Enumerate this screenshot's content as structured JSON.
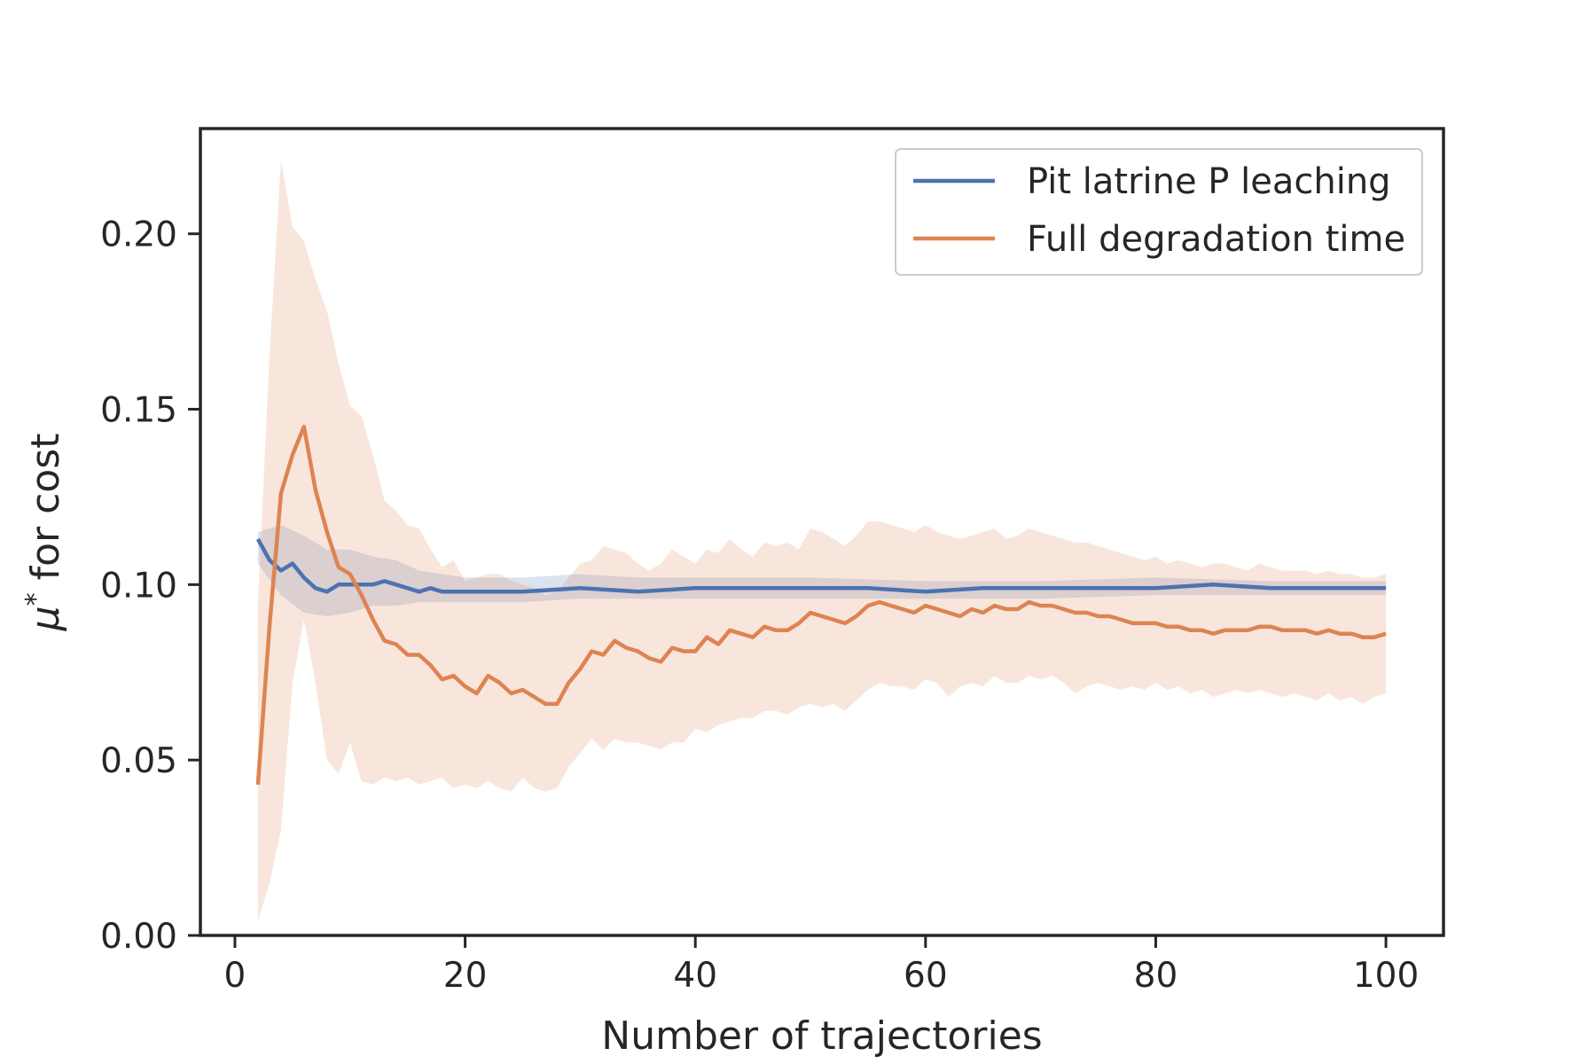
{
  "chart_data": {
    "type": "line",
    "title": "",
    "xlabel": "Number of trajectories",
    "ylabel_prefix": "μ",
    "ylabel_sup": "*",
    "ylabel_suffix": " for cost",
    "xlim": [
      -3,
      105
    ],
    "ylim": [
      0,
      0.23
    ],
    "x_ticks": [
      0,
      20,
      40,
      60,
      80,
      100
    ],
    "y_ticks": [
      0.0,
      0.05,
      0.1,
      0.15,
      0.2
    ],
    "x_tick_labels": [
      "0",
      "20",
      "40",
      "60",
      "80",
      "100"
    ],
    "y_tick_labels": [
      "0.00",
      "0.05",
      "0.10",
      "0.15",
      "0.20"
    ],
    "grid": false,
    "legend_position": "top-right",
    "series": [
      {
        "name": "Pit latrine P leaching",
        "color": "#4c72b0",
        "band_opacity": 0.2,
        "points": [
          [
            2,
            0.113
          ],
          [
            3,
            0.107
          ],
          [
            4,
            0.104
          ],
          [
            5,
            0.106
          ],
          [
            6,
            0.102
          ],
          [
            7,
            0.099
          ],
          [
            8,
            0.098
          ],
          [
            9,
            0.1
          ],
          [
            10,
            0.1
          ],
          [
            11,
            0.1
          ],
          [
            12,
            0.1
          ],
          [
            13,
            0.101
          ],
          [
            14,
            0.1
          ],
          [
            15,
            0.099
          ],
          [
            16,
            0.098
          ],
          [
            17,
            0.099
          ],
          [
            18,
            0.098
          ],
          [
            19,
            0.098
          ],
          [
            20,
            0.098
          ],
          [
            25,
            0.098
          ],
          [
            30,
            0.099
          ],
          [
            35,
            0.098
          ],
          [
            40,
            0.099
          ],
          [
            45,
            0.099
          ],
          [
            50,
            0.099
          ],
          [
            55,
            0.099
          ],
          [
            60,
            0.098
          ],
          [
            65,
            0.099
          ],
          [
            70,
            0.099
          ],
          [
            75,
            0.099
          ],
          [
            80,
            0.099
          ],
          [
            85,
            0.1
          ],
          [
            90,
            0.099
          ],
          [
            95,
            0.099
          ],
          [
            100,
            0.099
          ]
        ],
        "band": [
          [
            2,
            0.106,
            0.115
          ],
          [
            4,
            0.097,
            0.117
          ],
          [
            6,
            0.092,
            0.114
          ],
          [
            8,
            0.091,
            0.11
          ],
          [
            10,
            0.092,
            0.11
          ],
          [
            12,
            0.094,
            0.108
          ],
          [
            14,
            0.094,
            0.107
          ],
          [
            16,
            0.095,
            0.104
          ],
          [
            18,
            0.095,
            0.103
          ],
          [
            20,
            0.095,
            0.102
          ],
          [
            25,
            0.095,
            0.102
          ],
          [
            30,
            0.096,
            0.103
          ],
          [
            35,
            0.096,
            0.102
          ],
          [
            40,
            0.096,
            0.102
          ],
          [
            50,
            0.096,
            0.102
          ],
          [
            60,
            0.096,
            0.101
          ],
          [
            70,
            0.096,
            0.101
          ],
          [
            80,
            0.097,
            0.102
          ],
          [
            90,
            0.097,
            0.101
          ],
          [
            100,
            0.097,
            0.101
          ]
        ]
      },
      {
        "name": "Full degradation time",
        "color": "#dd8452",
        "band_opacity": 0.2,
        "points": [
          [
            2,
            0.043
          ],
          [
            3,
            0.088
          ],
          [
            4,
            0.126
          ],
          [
            5,
            0.137
          ],
          [
            6,
            0.145
          ],
          [
            7,
            0.127
          ],
          [
            8,
            0.115
          ],
          [
            9,
            0.105
          ],
          [
            10,
            0.103
          ],
          [
            11,
            0.097
          ],
          [
            12,
            0.09
          ],
          [
            13,
            0.084
          ],
          [
            14,
            0.083
          ],
          [
            15,
            0.08
          ],
          [
            16,
            0.08
          ],
          [
            17,
            0.077
          ],
          [
            18,
            0.073
          ],
          [
            19,
            0.074
          ],
          [
            20,
            0.071
          ],
          [
            21,
            0.069
          ],
          [
            22,
            0.074
          ],
          [
            23,
            0.072
          ],
          [
            24,
            0.069
          ],
          [
            25,
            0.07
          ],
          [
            26,
            0.068
          ],
          [
            27,
            0.066
          ],
          [
            28,
            0.066
          ],
          [
            29,
            0.072
          ],
          [
            30,
            0.076
          ],
          [
            31,
            0.081
          ],
          [
            32,
            0.08
          ],
          [
            33,
            0.084
          ],
          [
            34,
            0.082
          ],
          [
            35,
            0.081
          ],
          [
            36,
            0.079
          ],
          [
            37,
            0.078
          ],
          [
            38,
            0.082
          ],
          [
            39,
            0.081
          ],
          [
            40,
            0.081
          ],
          [
            41,
            0.085
          ],
          [
            42,
            0.083
          ],
          [
            43,
            0.087
          ],
          [
            44,
            0.086
          ],
          [
            45,
            0.085
          ],
          [
            46,
            0.088
          ],
          [
            47,
            0.087
          ],
          [
            48,
            0.087
          ],
          [
            49,
            0.089
          ],
          [
            50,
            0.092
          ],
          [
            51,
            0.091
          ],
          [
            52,
            0.09
          ],
          [
            53,
            0.089
          ],
          [
            54,
            0.091
          ],
          [
            55,
            0.094
          ],
          [
            56,
            0.095
          ],
          [
            57,
            0.094
          ],
          [
            58,
            0.093
          ],
          [
            59,
            0.092
          ],
          [
            60,
            0.094
          ],
          [
            61,
            0.093
          ],
          [
            62,
            0.092
          ],
          [
            63,
            0.091
          ],
          [
            64,
            0.093
          ],
          [
            65,
            0.092
          ],
          [
            66,
            0.094
          ],
          [
            67,
            0.093
          ],
          [
            68,
            0.093
          ],
          [
            69,
            0.095
          ],
          [
            70,
            0.094
          ],
          [
            71,
            0.094
          ],
          [
            72,
            0.093
          ],
          [
            73,
            0.092
          ],
          [
            74,
            0.092
          ],
          [
            75,
            0.091
          ],
          [
            76,
            0.091
          ],
          [
            77,
            0.09
          ],
          [
            78,
            0.089
          ],
          [
            79,
            0.089
          ],
          [
            80,
            0.089
          ],
          [
            81,
            0.088
          ],
          [
            82,
            0.088
          ],
          [
            83,
            0.087
          ],
          [
            84,
            0.087
          ],
          [
            85,
            0.086
          ],
          [
            86,
            0.087
          ],
          [
            87,
            0.087
          ],
          [
            88,
            0.087
          ],
          [
            89,
            0.088
          ],
          [
            90,
            0.088
          ],
          [
            91,
            0.087
          ],
          [
            92,
            0.087
          ],
          [
            93,
            0.087
          ],
          [
            94,
            0.086
          ],
          [
            95,
            0.087
          ],
          [
            96,
            0.086
          ],
          [
            97,
            0.086
          ],
          [
            98,
            0.085
          ],
          [
            99,
            0.085
          ],
          [
            100,
            0.086
          ]
        ],
        "band": [
          [
            2,
            0.004,
            0.095
          ],
          [
            3,
            0.015,
            0.165
          ],
          [
            4,
            0.03,
            0.221
          ],
          [
            5,
            0.072,
            0.202
          ],
          [
            6,
            0.09,
            0.198
          ],
          [
            7,
            0.072,
            0.187
          ],
          [
            8,
            0.05,
            0.178
          ],
          [
            9,
            0.046,
            0.163
          ],
          [
            10,
            0.055,
            0.151
          ],
          [
            11,
            0.044,
            0.148
          ],
          [
            12,
            0.043,
            0.137
          ],
          [
            13,
            0.045,
            0.124
          ],
          [
            14,
            0.044,
            0.121
          ],
          [
            15,
            0.045,
            0.117
          ],
          [
            16,
            0.043,
            0.116
          ],
          [
            17,
            0.044,
            0.11
          ],
          [
            18,
            0.045,
            0.105
          ],
          [
            19,
            0.042,
            0.107
          ],
          [
            20,
            0.043,
            0.101
          ],
          [
            21,
            0.042,
            0.102
          ],
          [
            22,
            0.044,
            0.103
          ],
          [
            23,
            0.042,
            0.103
          ],
          [
            24,
            0.041,
            0.101
          ],
          [
            25,
            0.045,
            0.1
          ],
          [
            26,
            0.042,
            0.099
          ],
          [
            27,
            0.041,
            0.097
          ],
          [
            28,
            0.042,
            0.098
          ],
          [
            29,
            0.048,
            0.102
          ],
          [
            30,
            0.052,
            0.106
          ],
          [
            31,
            0.056,
            0.107
          ],
          [
            32,
            0.053,
            0.111
          ],
          [
            33,
            0.056,
            0.11
          ],
          [
            34,
            0.055,
            0.109
          ],
          [
            35,
            0.055,
            0.106
          ],
          [
            36,
            0.054,
            0.104
          ],
          [
            37,
            0.053,
            0.106
          ],
          [
            38,
            0.055,
            0.11
          ],
          [
            39,
            0.055,
            0.108
          ],
          [
            40,
            0.059,
            0.106
          ],
          [
            41,
            0.058,
            0.11
          ],
          [
            42,
            0.06,
            0.109
          ],
          [
            43,
            0.061,
            0.113
          ],
          [
            44,
            0.062,
            0.11
          ],
          [
            45,
            0.062,
            0.108
          ],
          [
            46,
            0.064,
            0.112
          ],
          [
            47,
            0.064,
            0.111
          ],
          [
            48,
            0.063,
            0.112
          ],
          [
            49,
            0.065,
            0.11
          ],
          [
            50,
            0.066,
            0.116
          ],
          [
            51,
            0.065,
            0.115
          ],
          [
            52,
            0.066,
            0.113
          ],
          [
            53,
            0.064,
            0.111
          ],
          [
            54,
            0.067,
            0.114
          ],
          [
            55,
            0.07,
            0.118
          ],
          [
            56,
            0.072,
            0.118
          ],
          [
            57,
            0.071,
            0.117
          ],
          [
            58,
            0.071,
            0.116
          ],
          [
            59,
            0.07,
            0.115
          ],
          [
            60,
            0.073,
            0.117
          ],
          [
            61,
            0.072,
            0.115
          ],
          [
            62,
            0.068,
            0.114
          ],
          [
            63,
            0.071,
            0.113
          ],
          [
            64,
            0.072,
            0.114
          ],
          [
            65,
            0.071,
            0.115
          ],
          [
            66,
            0.074,
            0.116
          ],
          [
            67,
            0.072,
            0.113
          ],
          [
            68,
            0.072,
            0.114
          ],
          [
            69,
            0.074,
            0.116
          ],
          [
            70,
            0.073,
            0.115
          ],
          [
            71,
            0.074,
            0.114
          ],
          [
            72,
            0.072,
            0.113
          ],
          [
            73,
            0.069,
            0.112
          ],
          [
            74,
            0.071,
            0.112
          ],
          [
            75,
            0.072,
            0.111
          ],
          [
            76,
            0.071,
            0.11
          ],
          [
            77,
            0.07,
            0.109
          ],
          [
            78,
            0.071,
            0.108
          ],
          [
            79,
            0.07,
            0.107
          ],
          [
            80,
            0.072,
            0.108
          ],
          [
            81,
            0.07,
            0.106
          ],
          [
            82,
            0.071,
            0.107
          ],
          [
            83,
            0.069,
            0.106
          ],
          [
            84,
            0.07,
            0.105
          ],
          [
            85,
            0.068,
            0.106
          ],
          [
            86,
            0.069,
            0.106
          ],
          [
            87,
            0.07,
            0.105
          ],
          [
            88,
            0.069,
            0.104
          ],
          [
            89,
            0.07,
            0.106
          ],
          [
            90,
            0.069,
            0.105
          ],
          [
            91,
            0.068,
            0.104
          ],
          [
            92,
            0.069,
            0.104
          ],
          [
            93,
            0.068,
            0.104
          ],
          [
            94,
            0.067,
            0.103
          ],
          [
            95,
            0.069,
            0.104
          ],
          [
            96,
            0.067,
            0.103
          ],
          [
            97,
            0.068,
            0.103
          ],
          [
            98,
            0.066,
            0.102
          ],
          [
            99,
            0.068,
            0.102
          ],
          [
            100,
            0.069,
            0.103
          ]
        ]
      }
    ]
  }
}
